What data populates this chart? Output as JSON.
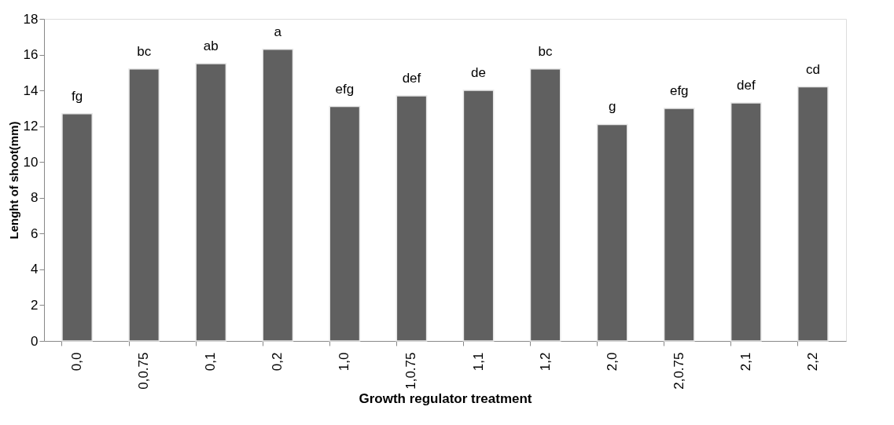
{
  "chart_data": {
    "type": "bar",
    "xlabel": "Growth regulator treatment",
    "ylabel": "Lenght of shoot(mm)",
    "categories": [
      "0,0",
      "0,0.75",
      "0,1",
      "0,2",
      "1,0",
      "1,0.75",
      "1,1",
      "1,2",
      "2,0",
      "2,0.75",
      "2,1",
      "2,2"
    ],
    "values": [
      12.7,
      15.2,
      15.5,
      16.3,
      13.1,
      13.7,
      14.0,
      15.2,
      12.1,
      13.0,
      13.3,
      14.2
    ],
    "color": "#606060",
    "ylim": [
      0,
      18
    ],
    "yticks": [
      0,
      2,
      4,
      6,
      8,
      10,
      12,
      14,
      16,
      18
    ],
    "grid": false,
    "annotations": [
      {
        "text": "fg",
        "x": "0,0",
        "y": 12.7
      },
      {
        "text": "bc",
        "x": "0,0.75",
        "y": 15.2
      },
      {
        "text": "ab",
        "x": "0,1",
        "y": 15.5
      },
      {
        "text": "a",
        "x": "0,2",
        "y": 16.3
      },
      {
        "text": "efg",
        "x": "1,0",
        "y": 13.1
      },
      {
        "text": "def",
        "x": "1,0.75",
        "y": 13.7
      },
      {
        "text": "de",
        "x": "1,1",
        "y": 14.0
      },
      {
        "text": "bc",
        "x": "1,2",
        "y": 15.2
      },
      {
        "text": "g",
        "x": "2,0",
        "y": 12.1
      },
      {
        "text": "efg",
        "x": "2,0.75",
        "y": 13.0
      },
      {
        "text": "def",
        "x": "2,1",
        "y": 13.3
      },
      {
        "text": "cd",
        "x": "2,2",
        "y": 14.2
      }
    ]
  }
}
